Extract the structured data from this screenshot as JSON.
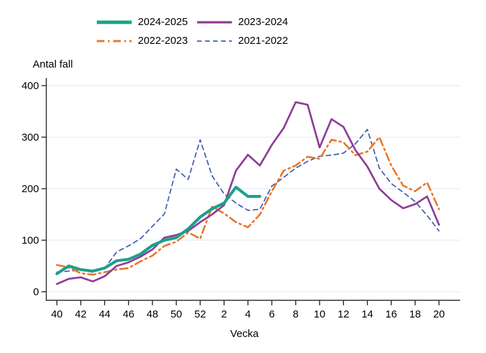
{
  "legend": {
    "items": [
      {
        "label": "2024-2025",
        "color": "#1DA089",
        "style": "solid-thick"
      },
      {
        "label": "2023-2024",
        "color": "#8E3C97",
        "style": "solid"
      },
      {
        "label": "2022-2023",
        "color": "#E8762C",
        "style": "dashdot"
      },
      {
        "label": "2021-2022",
        "color": "#3D5BA9",
        "style": "dashed"
      }
    ]
  },
  "chart_data": {
    "type": "line",
    "title": "",
    "ylabel": "Antal fall",
    "xlabel": "Vecka",
    "ylim": [
      0,
      400
    ],
    "yticks": [
      0,
      100,
      200,
      300,
      400
    ],
    "grid": "horizontal",
    "grid_color": "#dce9f4",
    "axis_color": "#262626",
    "legend_position": "top",
    "xtick_labels": [
      "40",
      "42",
      "44",
      "46",
      "48",
      "50",
      "52",
      "2",
      "4",
      "6",
      "8",
      "10",
      "12",
      "14",
      "16",
      "18",
      "20"
    ],
    "categories": [
      "40",
      "41",
      "42",
      "43",
      "44",
      "45",
      "46",
      "47",
      "48",
      "49",
      "50",
      "51",
      "52",
      "1",
      "2",
      "3",
      "4",
      "5",
      "6",
      "7",
      "8",
      "9",
      "10",
      "11",
      "12",
      "13",
      "14",
      "15",
      "16",
      "17",
      "18",
      "19",
      "20"
    ],
    "series": [
      {
        "name": "2021-2022",
        "color": "#3D5BA9",
        "style": "dashed",
        "values": [
          38,
          40,
          42,
          38,
          45,
          77,
          89,
          103,
          127,
          151,
          238,
          218,
          295,
          225,
          190,
          172,
          158,
          160,
          205,
          222,
          240,
          253,
          263,
          265,
          269,
          287,
          315,
          240,
          210,
          193,
          175,
          148,
          118
        ]
      },
      {
        "name": "2022-2023",
        "color": "#E8762C",
        "style": "dashdot",
        "values": [
          52,
          47,
          36,
          33,
          38,
          43,
          46,
          59,
          70,
          89,
          97,
          115,
          103,
          165,
          152,
          135,
          125,
          150,
          195,
          235,
          245,
          262,
          258,
          295,
          290,
          265,
          272,
          300,
          245,
          206,
          195,
          212,
          160
        ]
      },
      {
        "name": "2023-2024",
        "color": "#8E3C97",
        "style": "solid",
        "values": [
          15,
          25,
          28,
          20,
          30,
          50,
          57,
          68,
          82,
          105,
          110,
          118,
          135,
          150,
          168,
          235,
          266,
          245,
          285,
          318,
          368,
          363,
          280,
          335,
          320,
          275,
          243,
          200,
          178,
          162,
          170,
          185,
          130
        ]
      },
      {
        "name": "2024-2025",
        "color": "#1DA089",
        "style": "solid-thick",
        "values": [
          35,
          50,
          43,
          40,
          46,
          60,
          63,
          73,
          90,
          100,
          105,
          122,
          145,
          161,
          172,
          203,
          185,
          185,
          null,
          null,
          null,
          null,
          null,
          null,
          null,
          null,
          null,
          null,
          null,
          null,
          null,
          null,
          null
        ]
      }
    ]
  }
}
